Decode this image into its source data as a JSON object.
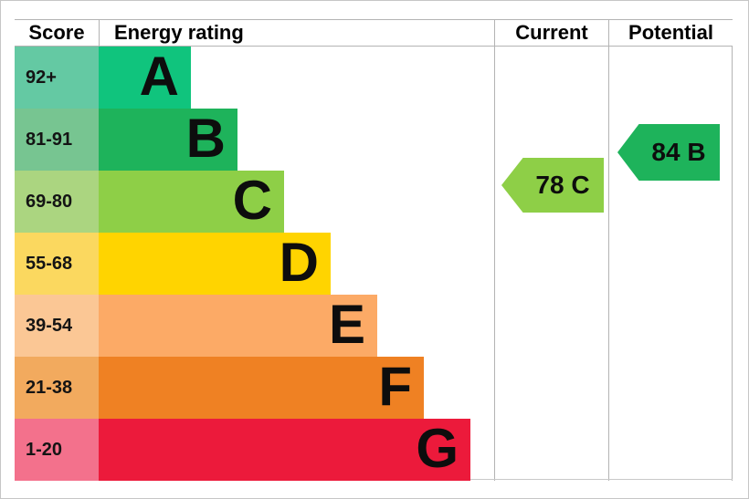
{
  "chart_data": {
    "type": "bar",
    "title": "Energy rating (EPC band chart)",
    "headers": {
      "score": "Score",
      "rating": "Energy rating",
      "current": "Current",
      "potential": "Potential"
    },
    "bands": [
      {
        "letter": "A",
        "range": "92+",
        "color": "#10c47d",
        "range_bg": "#64c9a3"
      },
      {
        "letter": "B",
        "range": "81-91",
        "color": "#1eb35b",
        "range_bg": "#77c591"
      },
      {
        "letter": "C",
        "range": "69-80",
        "color": "#8ecf47",
        "range_bg": "#abd580"
      },
      {
        "letter": "D",
        "range": "55-68",
        "color": "#ffd400",
        "range_bg": "#fbd85f"
      },
      {
        "letter": "E",
        "range": "39-54",
        "color": "#fcaa66",
        "range_bg": "#fbc795"
      },
      {
        "letter": "F",
        "range": "21-38",
        "color": "#ef8123",
        "range_bg": "#f2aa5e"
      },
      {
        "letter": "G",
        "range": "1-20",
        "color": "#ec1a3b",
        "range_bg": "#f3718c"
      }
    ],
    "current": {
      "label": "78 C",
      "value": 78,
      "band": "C",
      "color": "#8ecf47"
    },
    "potential": {
      "label": "84 B",
      "value": 84,
      "band": "B",
      "color": "#1eb35b"
    }
  }
}
